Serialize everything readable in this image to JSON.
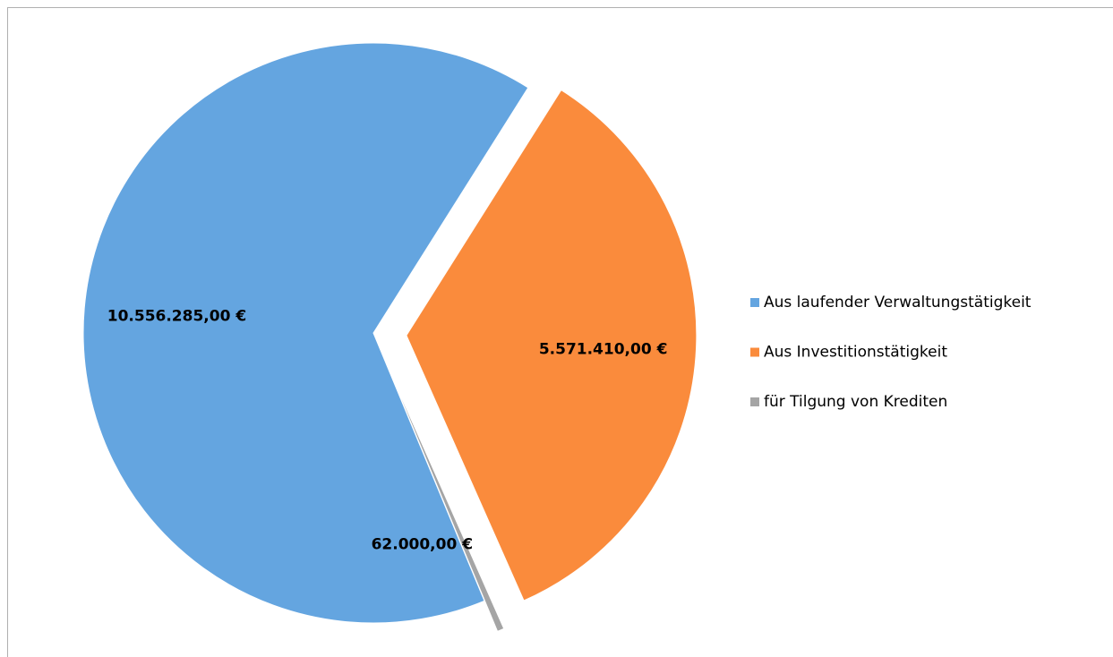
{
  "chart_data": {
    "type": "pie",
    "categories": [
      "Aus laufender Verwaltungstätigkeit",
      "Aus Investitionstätigkeit",
      "für Tilgung von Krediten"
    ],
    "values": [
      10556285,
      5571410,
      62000
    ],
    "value_labels": [
      "10.556.285,00 €",
      "5.571.410,00 €",
      "62.000,00 €"
    ],
    "colors": [
      "#64a5e0",
      "#fa8b3c",
      "#a5a5a5"
    ],
    "legend": "right"
  }
}
